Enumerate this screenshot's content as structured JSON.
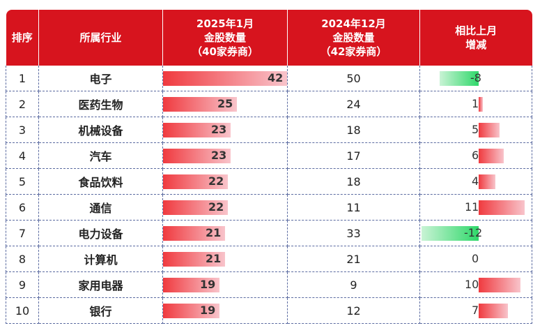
{
  "headers": {
    "rank": "排序",
    "industry": "所属行业",
    "jan_line1": "2025年1月",
    "jan_line2": "金股数量",
    "jan_line3": "（40家券商）",
    "dec_line1": "2024年12月",
    "dec_line2": "金股数量",
    "dec_line3": "（42家券商）",
    "chg_line1": "相比上月",
    "chg_line2": "增减"
  },
  "colors": {
    "header_bg": "#d7141e",
    "positive_bar": "#f03a3f",
    "negative_bar": "#2fd86a"
  },
  "rows": [
    {
      "rank": "1",
      "industry": "电子",
      "jan": "42",
      "jan_num": 42,
      "dec": "50",
      "chg": "-8",
      "chg_num": -8
    },
    {
      "rank": "2",
      "industry": "医药生物",
      "jan": "25",
      "jan_num": 25,
      "dec": "24",
      "chg": "1",
      "chg_num": 1
    },
    {
      "rank": "3",
      "industry": "机械设备",
      "jan": "23",
      "jan_num": 23,
      "dec": "18",
      "chg": "5",
      "chg_num": 5
    },
    {
      "rank": "4",
      "industry": "汽车",
      "jan": "23",
      "jan_num": 23,
      "dec": "17",
      "chg": "6",
      "chg_num": 6
    },
    {
      "rank": "5",
      "industry": "食品饮料",
      "jan": "22",
      "jan_num": 22,
      "dec": "18",
      "chg": "4",
      "chg_num": 4
    },
    {
      "rank": "6",
      "industry": "通信",
      "jan": "22",
      "jan_num": 22,
      "dec": "11",
      "chg": "11",
      "chg_num": 11
    },
    {
      "rank": "7",
      "industry": "电力设备",
      "jan": "21",
      "jan_num": 21,
      "dec": "33",
      "chg": "-12",
      "chg_num": -12
    },
    {
      "rank": "8",
      "industry": "计算机",
      "jan": "21",
      "jan_num": 21,
      "dec": "21",
      "chg": "0",
      "chg_num": 0
    },
    {
      "rank": "9",
      "industry": "家用电器",
      "jan": "19",
      "jan_num": 19,
      "dec": "9",
      "chg": "10",
      "chg_num": 10
    },
    {
      "rank": "10",
      "industry": "银行",
      "jan": "19",
      "jan_num": 19,
      "dec": "12",
      "chg": "7",
      "chg_num": 7
    }
  ]
}
